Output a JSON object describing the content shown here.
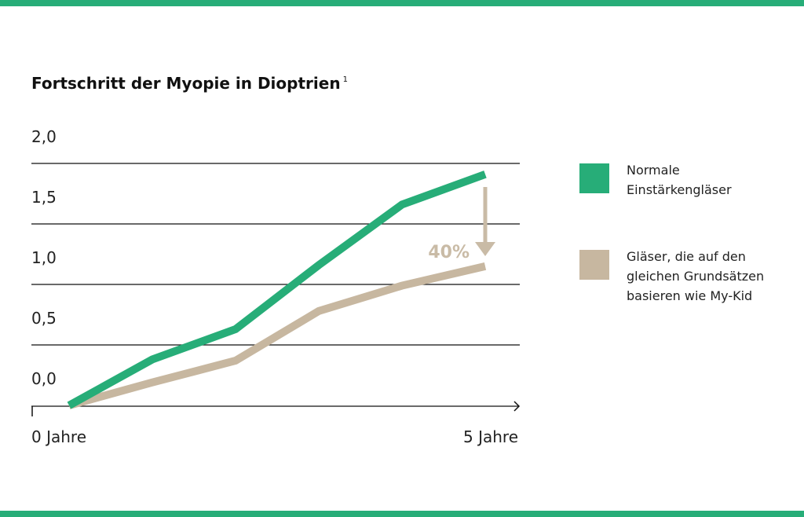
{
  "colors": {
    "band": "#27ad78",
    "series_normal": "#27ad78",
    "series_mykid": "#c7b7a0",
    "annotation": "#c9bba6",
    "grid": "#111111"
  },
  "chart_data": {
    "type": "line",
    "title": "Fortschritt der Myopie in Dioptrien",
    "title_footnote": "1",
    "y_ticks": [
      "2,0",
      "1,5",
      "1,0",
      "0,5",
      "0,0"
    ],
    "ylim": [
      0,
      2.0
    ],
    "x_labels": [
      "0 Jahre",
      "5 Jahre"
    ],
    "x": [
      0,
      1,
      2,
      3,
      4,
      5
    ],
    "series": [
      {
        "name": "Normale Einstärkengläser",
        "values": [
          0.0,
          0.38,
          0.63,
          1.16,
          1.66,
          1.91
        ]
      },
      {
        "name": "Gläser, die auf den gleichen Grundsätzen basieren wie My-Kid",
        "values": [
          0.0,
          0.19,
          0.37,
          0.78,
          0.99,
          1.15
        ]
      }
    ],
    "annotation": {
      "text": "40%",
      "at_x": 5
    },
    "grid": true,
    "legend_position": "right"
  },
  "legend": [
    {
      "label_lines": [
        "Normale",
        "Einstärkengläser"
      ]
    },
    {
      "label_lines": [
        "Gläser, die auf den",
        "gleichen Grundsätzen",
        "basieren wie My-Kid"
      ]
    }
  ]
}
